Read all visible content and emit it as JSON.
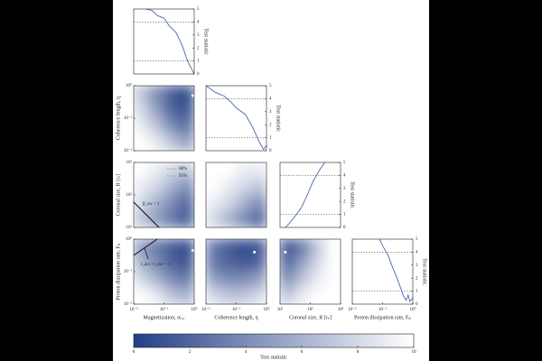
{
  "chart_data": [
    {
      "type": "line",
      "xlim": [
        0.01,
        1
      ],
      "xlog": true,
      "ylim": [
        0,
        5
      ],
      "yticks": [
        0,
        1,
        2,
        3,
        4,
        5
      ],
      "ylabel": "Test statistic",
      "levels": [
        1,
        4
      ],
      "x": [
        0.025,
        0.04,
        0.06,
        0.1,
        0.15,
        0.25,
        0.4,
        0.6,
        1.0
      ],
      "y": [
        5,
        4.9,
        4.5,
        4.3,
        3.7,
        3.2,
        2.2,
        1.0,
        0
      ],
      "color": "#4a68a8"
    },
    {
      "type": "heatmap",
      "xlim": [
        0.01,
        1
      ],
      "xlog": true,
      "ylim": [
        0.01,
        1
      ],
      "ylog": true,
      "yticks": [
        {
          "value": 0.01,
          "label": "10⁻²"
        },
        {
          "value": 0.1,
          "label": "10⁻¹"
        },
        {
          "value": 1,
          "label": "10⁰"
        }
      ],
      "ylabel": "Coherence length, η",
      "z": [
        [
          7,
          4,
          1.5,
          0.5
        ],
        [
          8,
          5,
          2,
          1
        ],
        [
          9,
          7,
          4,
          2.5
        ],
        [
          10,
          9,
          7,
          5
        ]
      ],
      "best_fit": [
        0.9,
        0.5
      ]
    },
    {
      "type": "line",
      "xlim": [
        0.01,
        1
      ],
      "xlog": true,
      "ylim": [
        0,
        5
      ],
      "yticks": [
        0,
        1,
        2,
        3,
        4,
        5
      ],
      "ylabel": "Test statistic",
      "levels": [
        1,
        4
      ],
      "x": [
        0.01,
        0.02,
        0.04,
        0.07,
        0.1,
        0.2,
        0.35,
        0.6,
        0.8,
        1.0
      ],
      "y": [
        5,
        4.5,
        4.2,
        3.7,
        3.3,
        2.8,
        1.8,
        0.6,
        0.1,
        0.4
      ],
      "color": "#4a68a8"
    },
    {
      "type": "heatmap",
      "xlim": [
        0.01,
        1
      ],
      "xlog": true,
      "ylim": [
        10,
        1000
      ],
      "ylog": true,
      "yticks": [
        {
          "value": 10,
          "label": "10¹"
        },
        {
          "value": 100,
          "label": "10²"
        },
        {
          "value": 1000,
          "label": "10³"
        }
      ],
      "ylabel": "Coronal size, R [rₛ]",
      "z": [
        [
          10,
          9,
          8,
          7
        ],
        [
          9,
          8,
          6,
          4
        ],
        [
          8,
          6,
          4,
          2
        ],
        [
          7,
          5,
          3,
          1.5
        ]
      ],
      "legend": [
        {
          "name": "68%",
          "dash": "dashed"
        },
        {
          "name": "95%",
          "dash": "dotted"
        }
      ],
      "annotation": "β_sw < 1"
    },
    {
      "type": "heatmap",
      "xlim": [
        0.01,
        1
      ],
      "xlog": true,
      "ylim": [
        10,
        1000
      ],
      "ylog": true,
      "z": [
        [
          10,
          10,
          9,
          9
        ],
        [
          10,
          9,
          8,
          7
        ],
        [
          9,
          8,
          6,
          4
        ],
        [
          8,
          6,
          4,
          2
        ]
      ]
    },
    {
      "type": "line",
      "xlim": [
        10,
        1000
      ],
      "xlog": true,
      "ylim": [
        0,
        5
      ],
      "yticks": [
        0,
        1,
        2,
        3,
        4,
        5
      ],
      "ylabel": "Test statistic",
      "levels": [
        1,
        4
      ],
      "x": [
        15,
        20,
        30,
        50,
        80,
        120,
        200,
        300
      ],
      "y": [
        0,
        0.3,
        0.8,
        1.5,
        2.5,
        3.5,
        4.4,
        5
      ],
      "color": "#4a68a8"
    },
    {
      "type": "heatmap",
      "xlim": [
        0.01,
        1
      ],
      "xlog": true,
      "ylim": [
        0.01,
        1
      ],
      "ylog": true,
      "xticks": [
        {
          "value": 0.01,
          "label": "10⁻²"
        },
        {
          "value": 0.1,
          "label": "10⁻¹"
        },
        {
          "value": 1,
          "label": "10⁰"
        }
      ],
      "xlabel": "Magnetization, σₜᵤᵣ",
      "yticks": [
        {
          "value": 0.01,
          "label": "10⁻²"
        },
        {
          "value": 0.1,
          "label": "10⁻¹"
        },
        {
          "value": 1,
          "label": "10⁰"
        }
      ],
      "ylabel": "Proton dissipation rate, Fₚ",
      "z": [
        [
          5,
          3,
          1.5,
          0.5
        ],
        [
          6,
          4,
          2,
          1
        ],
        [
          8,
          6,
          4,
          3
        ],
        [
          10,
          9,
          7,
          6
        ]
      ],
      "best_fit": [
        0.9,
        0.45
      ],
      "annotation": "t_acc / t_esc < 1"
    },
    {
      "type": "heatmap",
      "xlim": [
        0.01,
        1
      ],
      "xlog": true,
      "ylim": [
        0.01,
        1
      ],
      "ylog": true,
      "xticks": [
        {
          "value": 0.01,
          "label": "10⁻²"
        },
        {
          "value": 0.1,
          "label": "10⁻¹"
        },
        {
          "value": 1,
          "label": "10⁰"
        }
      ],
      "xlabel": "Coherence length, η",
      "z": [
        [
          3,
          1.5,
          0.5,
          1
        ],
        [
          3,
          2,
          1.5,
          2
        ],
        [
          5,
          4,
          4,
          5
        ],
        [
          8,
          7,
          7,
          8
        ]
      ],
      "best_fit": [
        0.4,
        0.4
      ]
    },
    {
      "type": "heatmap",
      "xlim": [
        10,
        1000
      ],
      "xlog": true,
      "ylim": [
        0.01,
        1
      ],
      "ylog": true,
      "xticks": [
        {
          "value": 10,
          "label": "10¹"
        },
        {
          "value": 100,
          "label": "10²"
        },
        {
          "value": 1000,
          "label": "10³"
        }
      ],
      "xlabel": "Coronal size, R [rₛ]",
      "z": [
        [
          1,
          3,
          7,
          10
        ],
        [
          2,
          5,
          8,
          10
        ],
        [
          4,
          7,
          9,
          10
        ],
        [
          7,
          9,
          10,
          10
        ]
      ],
      "best_fit": [
        15,
        0.4
      ]
    },
    {
      "type": "line",
      "xlim": [
        0.01,
        1
      ],
      "xlog": true,
      "ylim": [
        0,
        5
      ],
      "yticks": [
        0,
        1,
        2,
        3,
        4,
        5
      ],
      "ylabel": "Test statistic",
      "levels": [
        1,
        4
      ],
      "xticks": [
        {
          "value": 0.01,
          "label": "10⁻²"
        },
        {
          "value": 0.1,
          "label": "10⁻¹"
        },
        {
          "value": 1,
          "label": "10⁰"
        }
      ],
      "xlabel": "Proton dissipation rate, Fₚ",
      "x": [
        0.08,
        0.1,
        0.15,
        0.2,
        0.3,
        0.4,
        0.5,
        0.6,
        0.7,
        0.8,
        1.0
      ],
      "y": [
        5,
        4.5,
        3.8,
        3.0,
        2.0,
        1.2,
        0.6,
        0.3,
        0.7,
        0.2,
        0.5
      ],
      "color": "#4a68a8"
    }
  ],
  "colorbar": {
    "label": "Test statistic",
    "lim": [
      0,
      10
    ],
    "ticks": [
      0,
      2,
      4,
      6,
      8,
      10
    ]
  }
}
